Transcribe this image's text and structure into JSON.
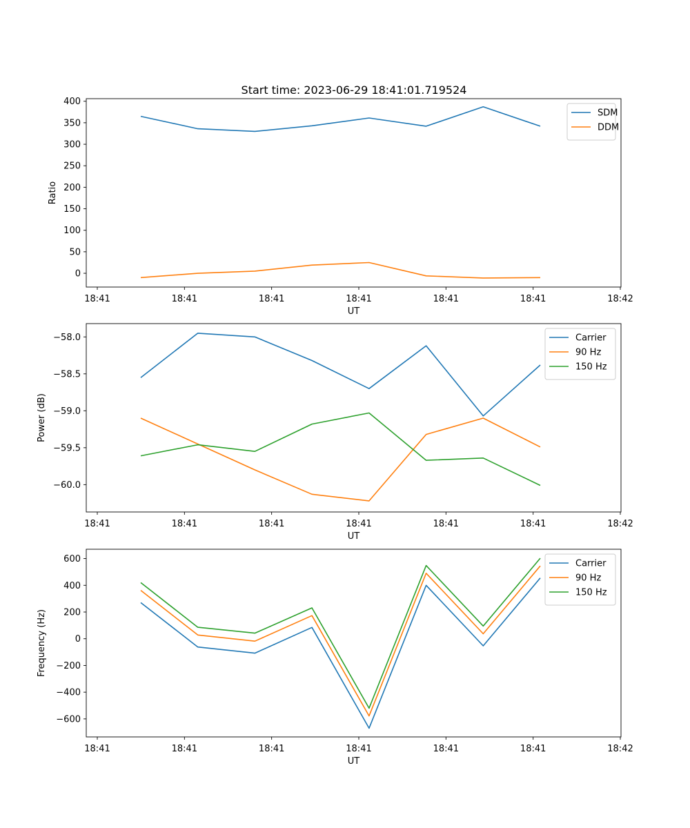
{
  "title": "Start time: 2023-06-29 18:41:01.719524",
  "chart_data": [
    {
      "type": "line",
      "xlabel": "UT",
      "ylabel": "Ratio",
      "x_tick_labels": [
        "18:41",
        "18:41",
        "18:41",
        "18:41",
        "18:41",
        "18:41",
        "18:42"
      ],
      "y_ticks": [
        0,
        50,
        100,
        150,
        200,
        250,
        300,
        350,
        400
      ],
      "ylim": [
        -32,
        406
      ],
      "legend_position": "top-right",
      "series": [
        {
          "name": "SDM",
          "color": "#1f77b4",
          "values": [
            365,
            336,
            330,
            343,
            361,
            342,
            387,
            342
          ]
        },
        {
          "name": "DDM",
          "color": "#ff7f0e",
          "values": [
            -10,
            0,
            5,
            19,
            25,
            -6,
            -11,
            -10
          ]
        }
      ]
    },
    {
      "type": "line",
      "xlabel": "UT",
      "ylabel": "Power (dB)",
      "x_tick_labels": [
        "18:41",
        "18:41",
        "18:41",
        "18:41",
        "18:41",
        "18:41",
        "18:42"
      ],
      "y_ticks": [
        -60.0,
        -59.5,
        -59.0,
        -58.5,
        -58.0
      ],
      "y_tick_labels": [
        "−60.0",
        "−59.5",
        "−59.0",
        "−58.5",
        "−58.0"
      ],
      "ylim": [
        -60.37,
        -57.82
      ],
      "legend_position": "top-right",
      "series": [
        {
          "name": "Carrier",
          "color": "#1f77b4",
          "values": [
            -58.55,
            -57.95,
            -58.0,
            -58.32,
            -58.7,
            -58.12,
            -59.07,
            -58.38
          ]
        },
        {
          "name": "90 Hz",
          "color": "#ff7f0e",
          "values": [
            -59.1,
            -59.45,
            -59.8,
            -60.13,
            -60.22,
            -59.32,
            -59.1,
            -59.49
          ]
        },
        {
          "name": "150 Hz",
          "color": "#2ca02c",
          "values": [
            -59.61,
            -59.46,
            -59.55,
            -59.18,
            -59.03,
            -59.67,
            -59.64,
            -60.01
          ]
        }
      ]
    },
    {
      "type": "line",
      "xlabel": "UT",
      "ylabel": "Frequency (Hz)",
      "x_tick_labels": [
        "18:41",
        "18:41",
        "18:41",
        "18:41",
        "18:41",
        "18:41",
        "18:42"
      ],
      "y_ticks": [
        -600,
        -400,
        -200,
        0,
        200,
        400,
        600
      ],
      "y_tick_labels": [
        "−600",
        "−400",
        "−200",
        "0",
        "200",
        "400",
        "600"
      ],
      "ylim": [
        -735,
        670
      ],
      "legend_position": "top-right",
      "series": [
        {
          "name": "Carrier",
          "color": "#1f77b4",
          "values": [
            270,
            -62,
            -108,
            85,
            -670,
            400,
            -53,
            455
          ]
        },
        {
          "name": "90 Hz",
          "color": "#ff7f0e",
          "values": [
            362,
            28,
            -18,
            173,
            -578,
            490,
            37,
            545
          ]
        },
        {
          "name": "150 Hz",
          "color": "#2ca02c",
          "values": [
            420,
            86,
            42,
            231,
            -520,
            548,
            95,
            603
          ]
        }
      ]
    }
  ]
}
